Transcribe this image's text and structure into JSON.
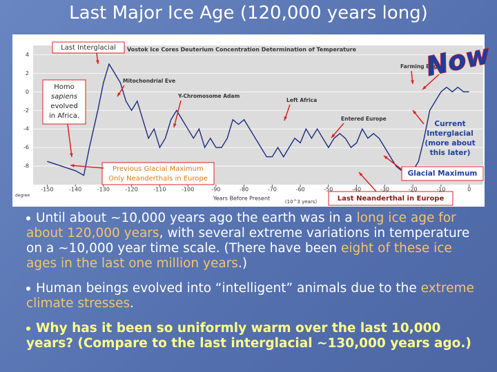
{
  "title": "Last Major Ice Age (120,000 years long)",
  "chart_data": {
    "type": "line",
    "title": "Vostok Ice Cores Deuterium Concentration Determination of Temperature",
    "x_label": "Years Before Present",
    "x_unit": "(10^3 years)",
    "y_unit": "degree",
    "xlim": [
      -155,
      5
    ],
    "xticks": [
      -150,
      -140,
      -130,
      -120,
      -110,
      -100,
      -90,
      -80,
      -70,
      -60,
      -50,
      -40,
      -30,
      -20,
      -10,
      0
    ],
    "ylim": [
      -10,
      5
    ],
    "yticks": [
      4,
      2,
      0,
      -2,
      -4,
      -6,
      -8
    ],
    "grid": true,
    "color": "#1c2a7c",
    "x": [
      -150,
      -145,
      -140,
      -137,
      -135,
      -132,
      -130,
      -128,
      -126,
      -124,
      -122,
      -120,
      -118,
      -116,
      -114,
      -112,
      -110,
      -108,
      -106,
      -104,
      -102,
      -100,
      -98,
      -96,
      -94,
      -92,
      -90,
      -88,
      -86,
      -84,
      -82,
      -80,
      -78,
      -76,
      -74,
      -72,
      -70,
      -68,
      -66,
      -64,
      -62,
      -60,
      -58,
      -56,
      -54,
      -52,
      -50,
      -48,
      -46,
      -44,
      -42,
      -40,
      -38,
      -36,
      -34,
      -32,
      -30,
      -28,
      -26,
      -24,
      -22,
      -20,
      -18,
      -16,
      -14,
      -12,
      -10,
      -8,
      -6,
      -4,
      -2,
      0
    ],
    "values": [
      -7.5,
      -8,
      -8.5,
      -9,
      -6,
      -2,
      1,
      3,
      2,
      1,
      -1,
      -2,
      -1,
      -3,
      -5,
      -4,
      -6,
      -5,
      -3,
      -2,
      -3,
      -4,
      -5,
      -4,
      -6,
      -5,
      -6,
      -6,
      -5,
      -3,
      -3.5,
      -3,
      -4,
      -5,
      -6,
      -7,
      -7,
      -6,
      -7,
      -6,
      -5,
      -5.5,
      -4,
      -5,
      -4,
      -5,
      -6,
      -5,
      -4.5,
      -5,
      -6,
      -5.5,
      -4,
      -5,
      -4.5,
      -5,
      -6,
      -7,
      -8,
      -8.5,
      -8.5,
      -8.5,
      -7.5,
      -5,
      -2,
      -1,
      0,
      0.5,
      0,
      0.5,
      0,
      0
    ],
    "annotations": [
      {
        "lines": [
          "Last Interglacial"
        ]
      },
      {
        "lines": [
          "Homo",
          "sapiens",
          "evolved",
          "in Africa."
        ]
      },
      {
        "lines": [
          "Mitochondrial Eve"
        ]
      },
      {
        "lines": [
          "Y-Chromosome Adam"
        ]
      },
      {
        "lines": [
          "Left Africa"
        ]
      },
      {
        "lines": [
          "Entered Europe"
        ]
      },
      {
        "lines": [
          "Farming Began"
        ]
      },
      {
        "lines": [
          "Current",
          "Interglacial",
          "(more about",
          "this later)"
        ]
      },
      {
        "lines": [
          "Glacial Maximum"
        ]
      },
      {
        "lines": [
          "Previous Glacial Maximum",
          "Only Neanderthals in Europe"
        ]
      },
      {
        "lines": [
          "Last Neanderthal in Europe"
        ]
      },
      {
        "lines": [
          "Now"
        ]
      }
    ]
  },
  "bullets": [
    {
      "segments": [
        {
          "text": "Until about ~10,000 years ago the earth was in a ",
          "highlight": false
        },
        {
          "text": "long ice age for about 120,000 years",
          "highlight": true
        },
        {
          "text": ", with several extreme variations in temperature on a ~10,000 year time scale. (There have been ",
          "highlight": false
        },
        {
          "text": "eight of these ice ages in the last one million years",
          "highlight": true
        },
        {
          "text": ".)",
          "highlight": false
        }
      ]
    },
    {
      "segments": [
        {
          "text": "Human beings evolved into “intelligent” animals due to the ",
          "highlight": false
        },
        {
          "text": "extreme climate stresses",
          "highlight": true
        },
        {
          "text": ".",
          "highlight": false
        }
      ]
    },
    {
      "bold": true,
      "segments": [
        {
          "text": "Why has it been so uniformly warm over the last 10,000 years? (Compare to the last interglacial ~130,000 years ago.)",
          "highlight": false
        }
      ]
    }
  ]
}
